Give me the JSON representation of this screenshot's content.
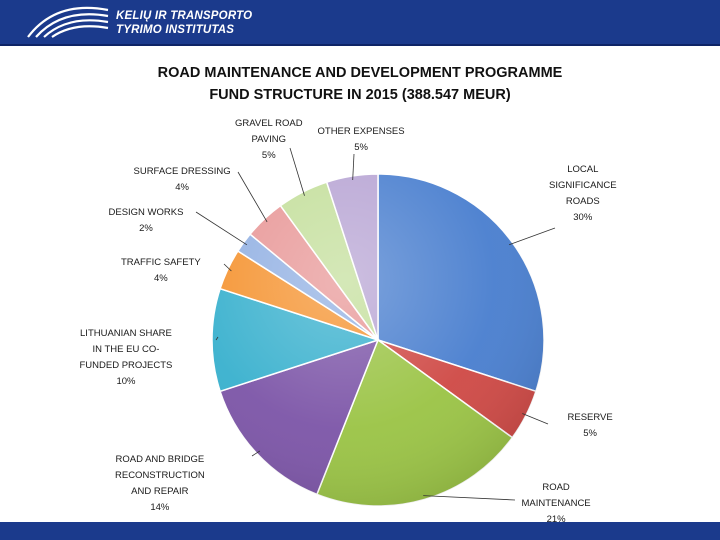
{
  "header": {
    "logo_line1": "KELIŲ IR TRANSPORTO",
    "logo_line2": "TYRIMO INSTITUTAS",
    "logo_icon": "road-arcs-logo-icon"
  },
  "chart_data": {
    "type": "pie",
    "title_line1": "ROAD MAINTENANCE AND DEVELOPMENT PROGRAMME",
    "title_line2": "FUND STRUCTURE IN 2015 (388.547 MEUR)",
    "slices": [
      {
        "label_lines": [
          "LOCAL",
          "SIGNIFICANCE",
          "ROADS"
        ],
        "value": 30,
        "pct_label": "30%",
        "color": "#4a7fcf"
      },
      {
        "label_lines": [
          "RESERVE"
        ],
        "value": 5,
        "pct_label": "5%",
        "color": "#cf4a46"
      },
      {
        "label_lines": [
          "ROAD",
          "MAINTENANCE"
        ],
        "value": 21,
        "pct_label": "21%",
        "color": "#9bc446"
      },
      {
        "label_lines": [
          "ROAD AND BRIDGE",
          "RECONSTRUCTION",
          "AND  REPAIR"
        ],
        "value": 14,
        "pct_label": "14%",
        "color": "#7d56a8"
      },
      {
        "label_lines": [
          "LITHUANIAN SHARE",
          "IN THE EU CO-",
          "FUNDED PROJECTS"
        ],
        "value": 10,
        "pct_label": "10%",
        "color": "#3ab1ce"
      },
      {
        "label_lines": [
          "TRAFFIC SAFETY"
        ],
        "value": 4,
        "pct_label": "4%",
        "color": "#f59432"
      },
      {
        "label_lines": [
          "DESIGN WORKS"
        ],
        "value": 2,
        "pct_label": "2%",
        "color": "#93b1e3"
      },
      {
        "label_lines": [
          "SURFACE DRESSING"
        ],
        "value": 4,
        "pct_label": "4%",
        "color": "#e89898"
      },
      {
        "label_lines": [
          "GRAVEL ROAD",
          "PAVING"
        ],
        "value": 5,
        "pct_label": "5%",
        "color": "#c4df9c"
      },
      {
        "label_lines": [
          "OTHER EXPENSES"
        ],
        "value": 5,
        "pct_label": "5%",
        "color": "#b8a5d4"
      }
    ]
  }
}
